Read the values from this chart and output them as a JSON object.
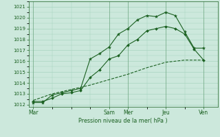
{
  "xlabel": "Pression niveau de la mer( hPa )",
  "ylim": [
    1011.8,
    1021.5
  ],
  "yticks": [
    1012,
    1013,
    1014,
    1015,
    1016,
    1017,
    1018,
    1019,
    1020,
    1021
  ],
  "day_labels": [
    "Mar",
    "Sam",
    "Mer",
    "Jeu",
    "Ven"
  ],
  "day_positions": [
    0,
    8,
    10,
    14,
    18
  ],
  "xlim": [
    -0.5,
    19.5
  ],
  "background_color": "#cce8dc",
  "grid_color": "#a8d4c0",
  "line_color": "#1a6020",
  "series1_x": [
    0,
    1,
    2,
    3,
    4,
    5,
    6,
    7,
    8,
    9,
    10,
    11,
    12,
    13,
    14,
    15,
    16,
    17,
    18
  ],
  "series1_y": [
    1012.3,
    1012.3,
    1012.6,
    1013.0,
    1013.1,
    1013.3,
    1014.5,
    1015.2,
    1016.2,
    1016.5,
    1017.5,
    1018.0,
    1018.8,
    1019.0,
    1019.2,
    1019.0,
    1018.5,
    1017.1,
    1016.1
  ],
  "series2_x": [
    0,
    1,
    2,
    3,
    4,
    5,
    6,
    7,
    8,
    9,
    10,
    11,
    12,
    13,
    14,
    15,
    16,
    17,
    18
  ],
  "series2_y": [
    1012.2,
    1012.2,
    1012.9,
    1013.1,
    1013.3,
    1013.5,
    1016.2,
    1016.7,
    1017.3,
    1018.5,
    1019.0,
    1019.8,
    1020.2,
    1020.1,
    1020.5,
    1020.2,
    1018.7,
    1017.2,
    1017.2
  ],
  "series3_x": [
    0,
    2,
    4,
    6,
    8,
    10,
    12,
    14,
    16,
    18
  ],
  "series3_y": [
    1012.4,
    1013.0,
    1013.4,
    1013.8,
    1014.3,
    1014.8,
    1015.4,
    1015.9,
    1016.1,
    1016.1
  ]
}
